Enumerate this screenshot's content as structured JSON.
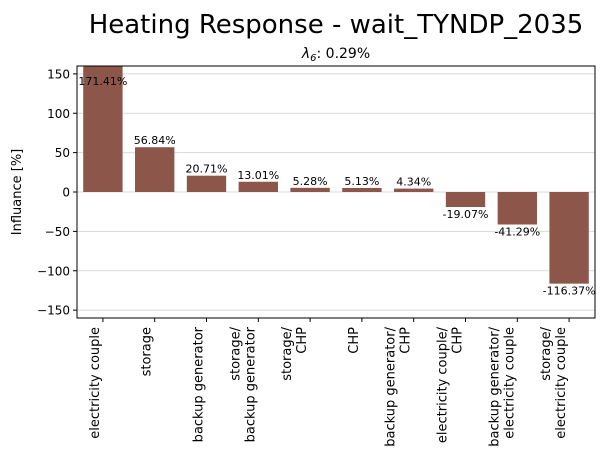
{
  "chart_data": {
    "type": "bar",
    "title": "Heating Response - wait_TYNDP_2035",
    "subtitle_symbol": "λ",
    "subtitle_subscript": "6",
    "subtitle_value": ": 0.29%",
    "xlabel": "",
    "ylabel": "Influance [%]",
    "ylim": [
      -160,
      160
    ],
    "yticks": [
      -150,
      -100,
      -50,
      0,
      50,
      100,
      150
    ],
    "grid": "horizontal",
    "bar_color": "#8c564b",
    "categories": [
      [
        "electricity couple"
      ],
      [
        "storage"
      ],
      [
        "backup generator"
      ],
      [
        "storage/",
        "backup generator"
      ],
      [
        "storage/",
        "CHP"
      ],
      [
        "CHP"
      ],
      [
        "backup generator/",
        "CHP"
      ],
      [
        "electricity couple/",
        "CHP"
      ],
      [
        "backup generator/",
        "electricity couple"
      ],
      [
        "storage/",
        "electricity couple"
      ]
    ],
    "values": [
      171.41,
      56.84,
      20.71,
      13.01,
      5.28,
      5.13,
      4.34,
      -19.07,
      -41.29,
      -116.37
    ],
    "value_labels": [
      "171.41%",
      "56.84%",
      "20.71%",
      "13.01%",
      "5.28%",
      "5.13%",
      "4.34%",
      "-19.07%",
      "-41.29%",
      "-116.37%"
    ]
  }
}
